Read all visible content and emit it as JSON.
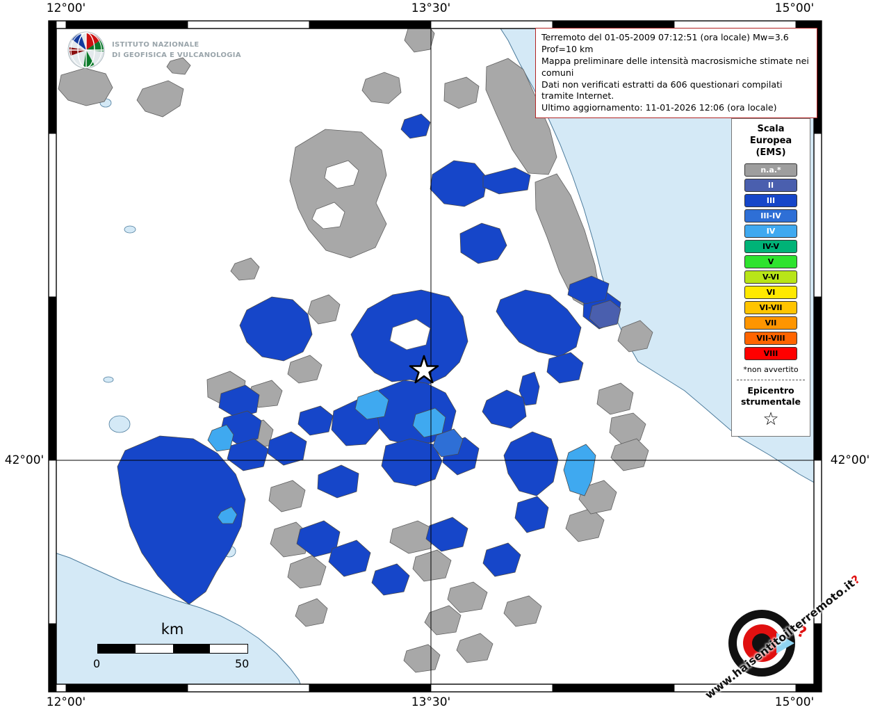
{
  "title_box": {
    "line1": "Terremoto del 01-05-2009 07:12:51 (ora locale) Mw=3.6 Prof=10 km",
    "line2": "Mappa preliminare delle intensità macrosismiche stimate nei comuni",
    "line3": "Dati non verificati estratti da 606 questionari compilati tramite Internet.",
    "line4": "Ultimo aggiornamento: 11-01-2026 12:06 (ora locale)"
  },
  "logo": {
    "org_line1": "ISTITUTO NAZIONALE",
    "org_line2": "DI GEOFISICA E VULCANOLOGIA"
  },
  "axes": {
    "top": [
      "12°00'",
      "13°30'",
      "15°00'"
    ],
    "bottom": [
      "12°00'",
      "13°30'",
      "15°00'"
    ],
    "left": "42°00'",
    "right": "42°00'"
  },
  "legend": {
    "title_lines": [
      "Scala",
      "Europea",
      "(EMS)"
    ],
    "items": [
      {
        "label": "n.a.*",
        "color": "#9e9e9e",
        "text_color": "#ffffff"
      },
      {
        "label": "II",
        "color": "#4a5fae",
        "text_color": "#ffffff"
      },
      {
        "label": "III",
        "color": "#1646c9",
        "text_color": "#ffffff"
      },
      {
        "label": "III-IV",
        "color": "#2e6fd6",
        "text_color": "#ffffff"
      },
      {
        "label": "IV",
        "color": "#3fa9f0",
        "text_color": "#ffffff"
      },
      {
        "label": "IV-V",
        "color": "#00b377",
        "text_color": "#000000"
      },
      {
        "label": "V",
        "color": "#2ee32e",
        "text_color": "#000000"
      },
      {
        "label": "V-VI",
        "color": "#b8e518",
        "text_color": "#000000"
      },
      {
        "label": "VI",
        "color": "#ffe900",
        "text_color": "#000000"
      },
      {
        "label": "VI-VII",
        "color": "#ffc400",
        "text_color": "#000000"
      },
      {
        "label": "VII",
        "color": "#ff9500",
        "text_color": "#000000"
      },
      {
        "label": "VII-VIII",
        "color": "#ff6400",
        "text_color": "#000000"
      },
      {
        "label": "VIII",
        "color": "#ff0000",
        "text_color": "#000000"
      }
    ],
    "footnote": "*non avvertito",
    "epicenter_label_line1": "Epicentro",
    "epicenter_label_line2": "strumentale",
    "epicenter_symbol": "☆"
  },
  "scalebar": {
    "unit": "km",
    "start_label": "0",
    "end_label": "50"
  },
  "watermark": {
    "site": "www.haisentitoilterremoto.it",
    "mark": "?"
  },
  "map_colors": {
    "sea": "#d4e9f6",
    "land": "#ffffff",
    "na": "#a8a8a8",
    "ii": "#4a5fae",
    "iii": "#1646c9",
    "iii_iv": "#2e6fd6",
    "iv": "#3fa9f0"
  }
}
